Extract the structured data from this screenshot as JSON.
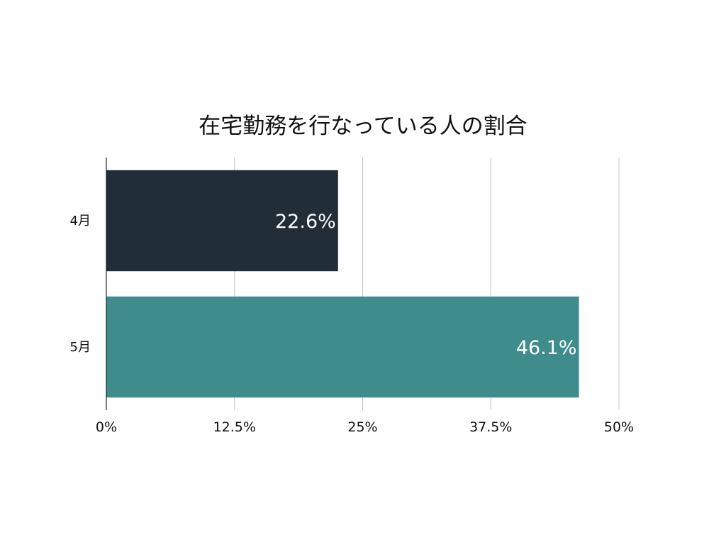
{
  "chart_data": {
    "type": "bar",
    "orientation": "horizontal",
    "title": "在宅勤務を行なっている人の割合",
    "categories": [
      "4月",
      "5月"
    ],
    "values": [
      22.6,
      46.1
    ],
    "value_labels": [
      "22.6%",
      "46.1%"
    ],
    "bar_colors": [
      "#212d37",
      "#3f8c8c"
    ],
    "xlim": [
      0,
      50
    ],
    "xticks": [
      0,
      12.5,
      25,
      37.5,
      50
    ],
    "xtick_labels": [
      "0%",
      "12.5%",
      "25%",
      "37.5%",
      "50%"
    ],
    "xlabel": "",
    "ylabel": "",
    "grid": "vertical",
    "legend": "none"
  }
}
